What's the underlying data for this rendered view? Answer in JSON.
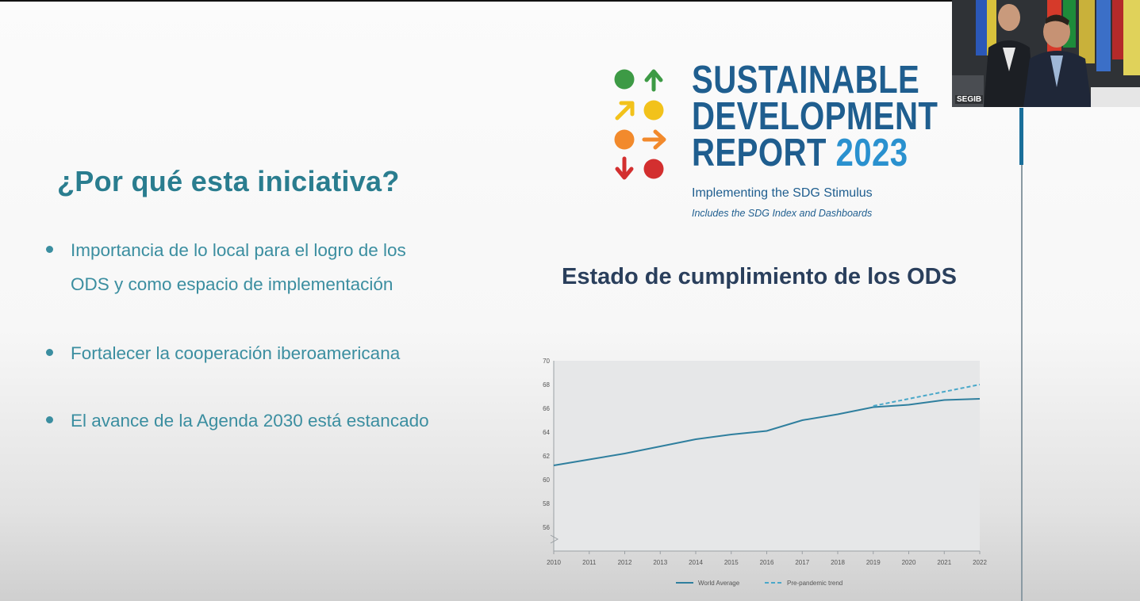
{
  "slide": {
    "title": "¿Por qué esta iniciativa?",
    "bullets": [
      "Importancia de lo local para el logro de los ODS y como espacio de implementación",
      "Fortalecer la cooperación iberoamericana",
      "El avance de la Agenda 2030 está estancado"
    ]
  },
  "report": {
    "title_line1": "SUSTAINABLE",
    "title_line2": "DEVELOPMENT",
    "title_line3": "REPORT",
    "year": "2023",
    "subtitle": "Implementing the SDG Stimulus",
    "subtitle2": "Includes the SDG Index and Dashboards",
    "logo_icons": [
      "circle-green",
      "arrow-up-green",
      "arrow-upright-yellow",
      "circle-yellow",
      "circle-orange",
      "arrow-right-orange",
      "arrow-down-red",
      "circle-red"
    ],
    "colors": {
      "green": "#3d9a45",
      "yellow": "#f2c21b",
      "orange": "#f28a2c",
      "red": "#d32f2f",
      "navy": "#1f5e8f",
      "blue": "#2a91cf"
    }
  },
  "chart_heading": "Estado de cumplimiento de los ODS",
  "chart_data": {
    "type": "line",
    "title": "",
    "xlabel": "",
    "ylabel": "",
    "x": [
      "2010",
      "2011",
      "2012",
      "2013",
      "2014",
      "2015",
      "2016",
      "2017",
      "2018",
      "2019",
      "2020",
      "2021",
      "2022"
    ],
    "yticks": [
      "56",
      "58",
      "60",
      "62",
      "64",
      "66",
      "68",
      "70"
    ],
    "ylim": [
      54,
      70
    ],
    "series": [
      {
        "name": "World Average",
        "style": "solid",
        "color": "#2f7f9e",
        "x": [
          "2010",
          "2011",
          "2012",
          "2013",
          "2014",
          "2015",
          "2016",
          "2017",
          "2018",
          "2019",
          "2020",
          "2021",
          "2022"
        ],
        "values": [
          61.2,
          61.7,
          62.2,
          62.8,
          63.4,
          63.8,
          64.1,
          65.0,
          65.5,
          66.1,
          66.3,
          66.7,
          66.8
        ]
      },
      {
        "name": "Pre-pandemic trend",
        "style": "dashed",
        "color": "#4aa8c9",
        "x": [
          "2019",
          "2020",
          "2021",
          "2022"
        ],
        "values": [
          66.2,
          66.8,
          67.4,
          68.0
        ]
      }
    ],
    "grid": false,
    "legend": "bottom-center",
    "axis_break": true
  },
  "webcam": {
    "label": "SEGIB"
  }
}
